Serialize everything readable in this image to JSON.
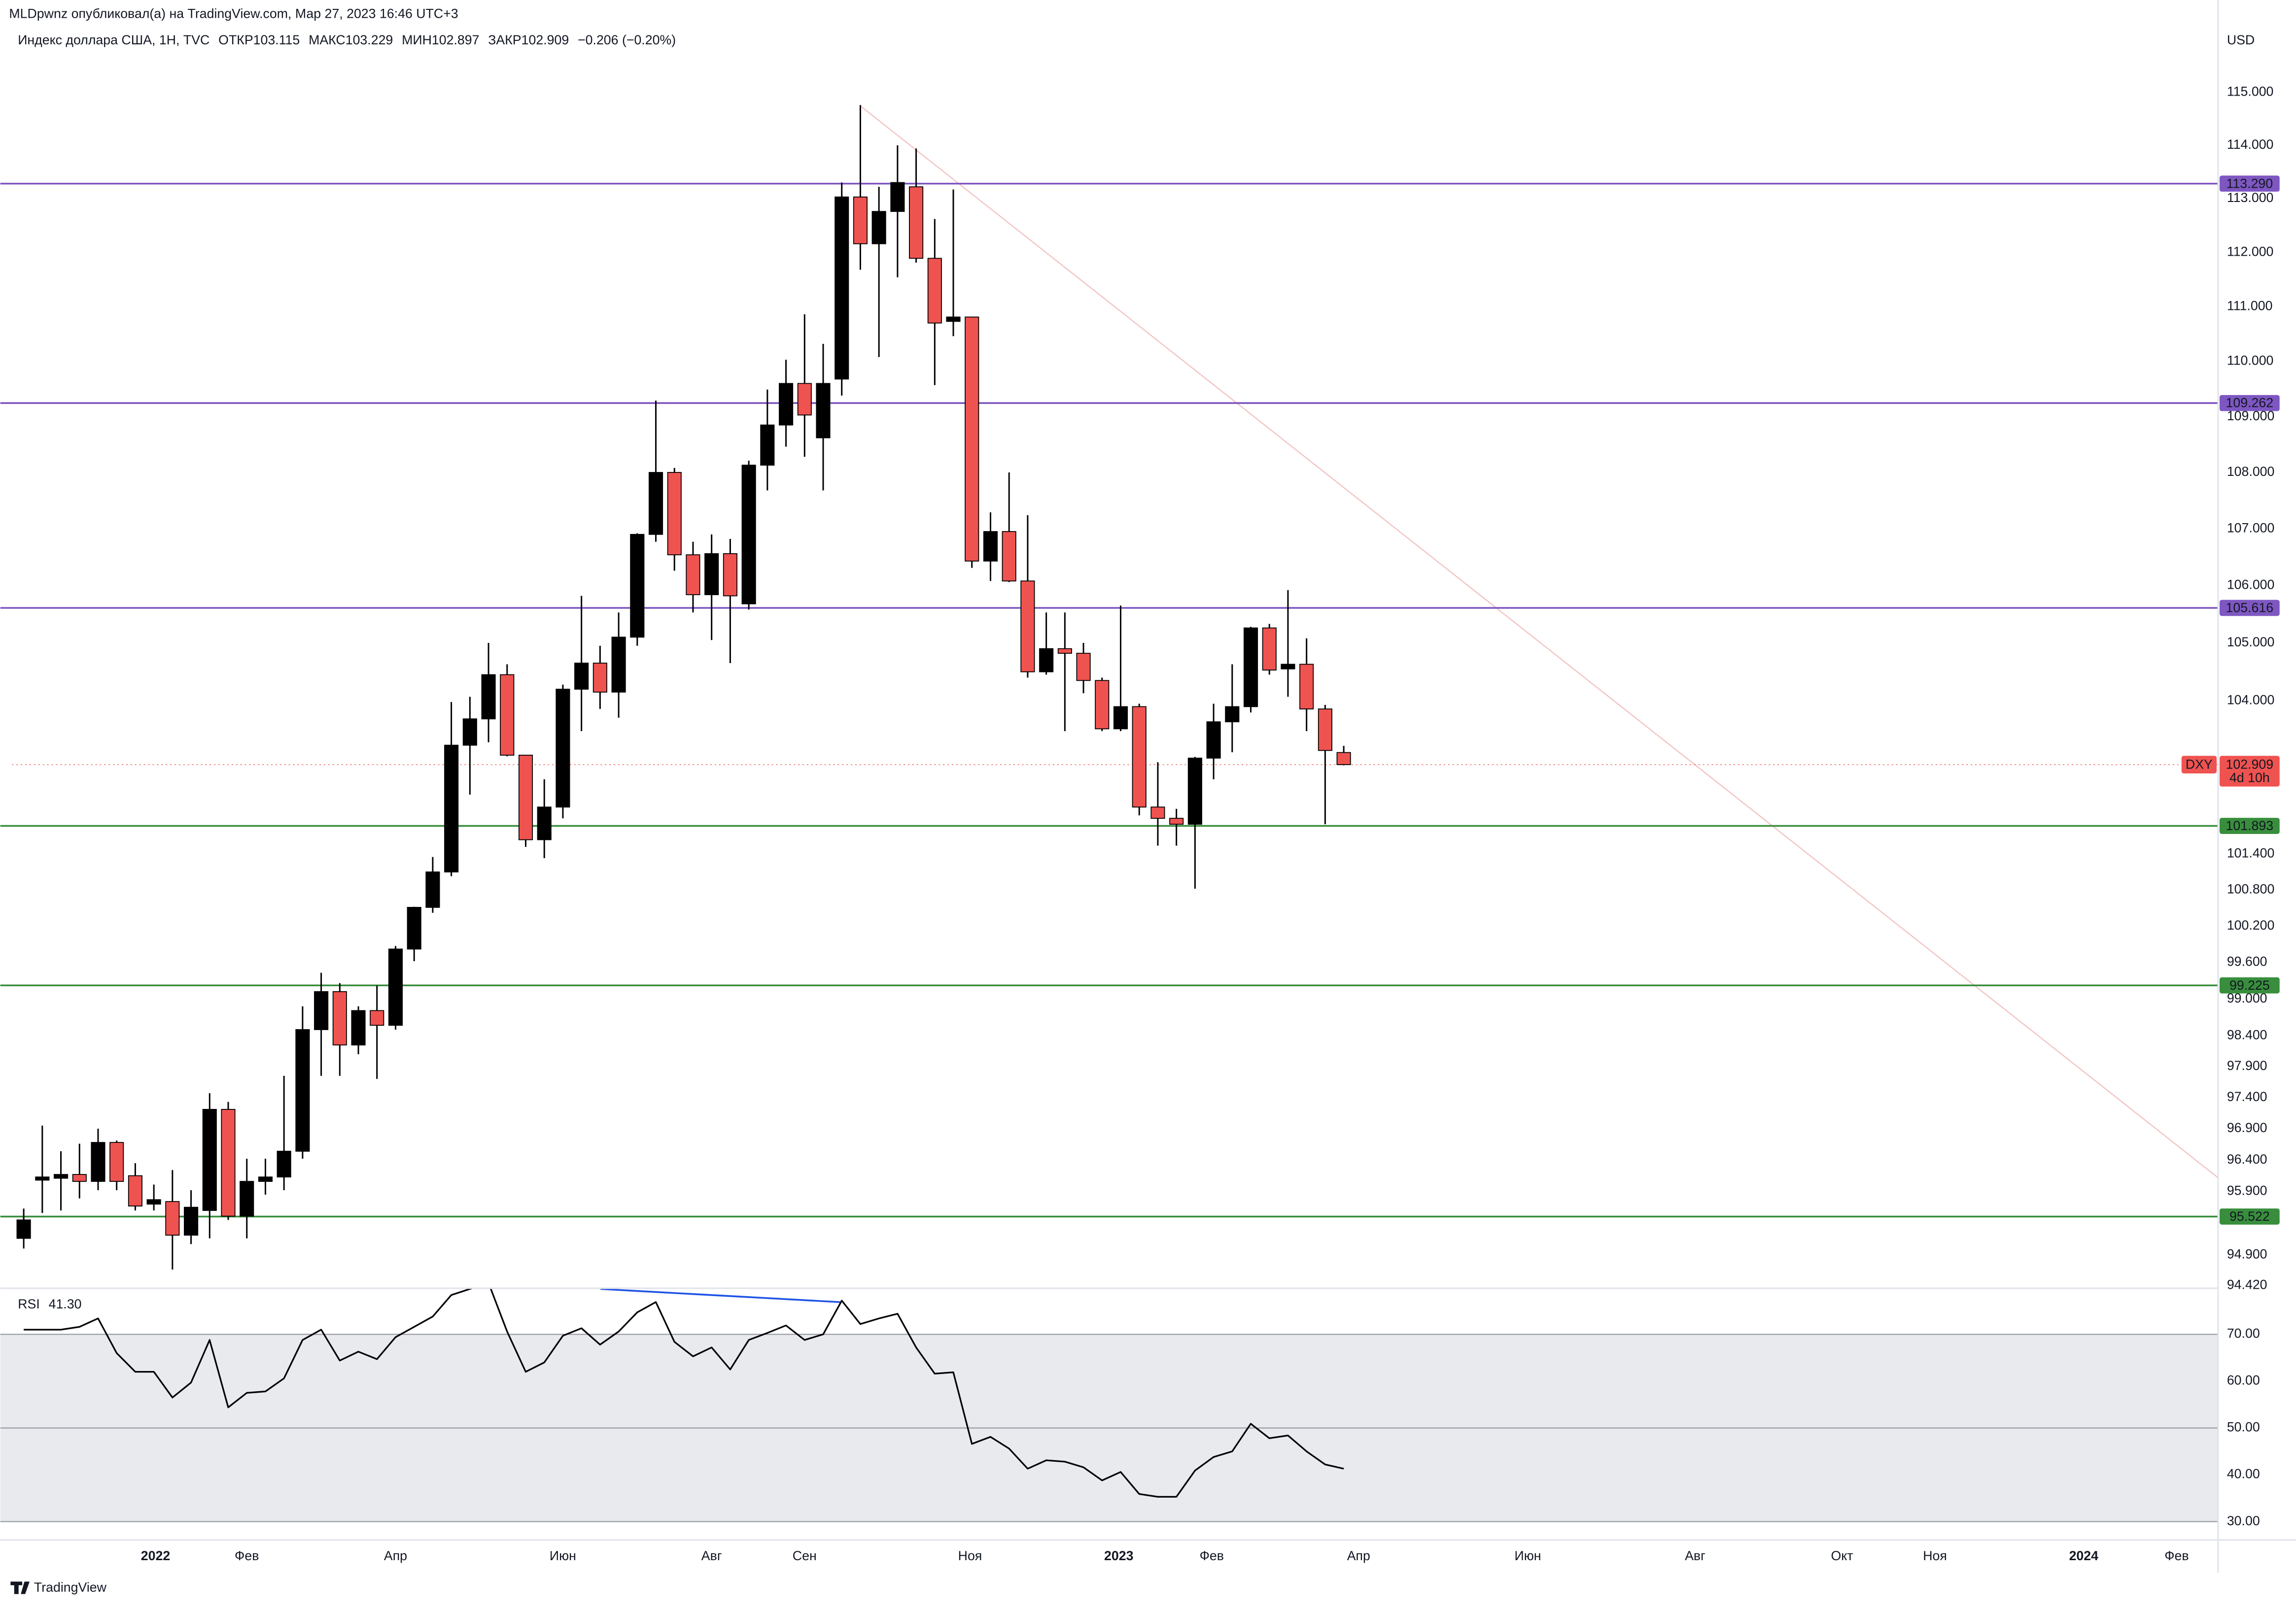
{
  "header": {
    "publisher": "MLDpwnz опубликовал(а) на TradingView.com, Мар 27, 2023 16:46 UTC+3",
    "legend": [
      "Индекс доллара США, 1Н, TVC",
      "ОТКР103.115",
      "МАКС103.229",
      "МИН102.897",
      "ЗАКР102.909",
      "−0.206 (−0.20%)"
    ],
    "currency": "USD"
  },
  "chart_data": [
    {
      "type": "candlestick",
      "log": true,
      "grid": false,
      "up_color": "#000000",
      "down_color": "#ef5350",
      "x": [
        0,
        1,
        2,
        3,
        4,
        5,
        6,
        7,
        8,
        9,
        10,
        11,
        12,
        13,
        14,
        15,
        16,
        17,
        18,
        19,
        20,
        21,
        22,
        23,
        24,
        25,
        26,
        27,
        28,
        29,
        30,
        31,
        32,
        33,
        34,
        35,
        36,
        37,
        38,
        39,
        40,
        41,
        42,
        43,
        44,
        45,
        46,
        47,
        48,
        49,
        50,
        51,
        52,
        53,
        54,
        55,
        56,
        57,
        58,
        59,
        60,
        61,
        62,
        63,
        64,
        65,
        66,
        67,
        68,
        69,
        70,
        71
      ],
      "open": [
        95.16,
        96.08,
        96.11,
        96.17,
        96.06,
        96.68,
        96.15,
        95.7,
        95.74,
        95.21,
        95.6,
        97.21,
        95.51,
        96.06,
        96.13,
        96.54,
        98.5,
        99.12,
        98.25,
        98.81,
        98.57,
        99.82,
        100.51,
        101.1,
        103.24,
        103.69,
        104.45,
        103.07,
        101.64,
        102.19,
        104.2,
        104.65,
        104.15,
        105.1,
        106.9,
        108.0,
        106.54,
        105.84,
        106.56,
        105.68,
        108.13,
        108.85,
        109.6,
        108.62,
        109.68,
        113.03,
        112.16,
        112.76,
        113.22,
        111.89,
        110.73,
        110.81,
        106.43,
        106.95,
        106.08,
        104.5,
        104.9,
        104.82,
        104.35,
        103.52,
        103.9,
        102.19,
        102.0,
        101.9,
        103.02,
        103.64,
        103.9,
        105.26,
        104.55,
        104.63,
        103.86,
        103.115
      ],
      "high": [
        95.63,
        96.95,
        96.54,
        96.66,
        96.9,
        96.71,
        96.35,
        96.01,
        96.24,
        95.92,
        97.47,
        97.33,
        96.42,
        96.42,
        97.75,
        98.88,
        99.43,
        99.26,
        98.88,
        99.22,
        99.87,
        100.52,
        101.35,
        103.98,
        104.07,
        105.0,
        104.63,
        103.07,
        102.66,
        104.28,
        105.82,
        104.95,
        105.53,
        106.92,
        109.29,
        108.08,
        106.77,
        106.9,
        106.82,
        108.21,
        109.49,
        110.03,
        110.86,
        110.32,
        113.3,
        114.76,
        113.22,
        114.0,
        113.94,
        112.62,
        113.17,
        110.81,
        107.29,
        108.0,
        107.24,
        105.53,
        105.53,
        105.0,
        104.4,
        105.65,
        103.95,
        102.95,
        102.16,
        103.04,
        103.95,
        104.63,
        105.28,
        105.33,
        105.92,
        105.08,
        103.93,
        103.229
      ],
      "low": [
        95.0,
        95.56,
        95.6,
        95.79,
        95.92,
        95.92,
        95.6,
        95.6,
        94.67,
        95.07,
        95.16,
        95.45,
        95.16,
        95.85,
        95.92,
        96.42,
        97.75,
        97.75,
        98.1,
        97.7,
        98.5,
        99.62,
        100.42,
        101.03,
        102.4,
        103.29,
        103.05,
        101.52,
        101.33,
        102.0,
        103.48,
        103.86,
        103.71,
        104.95,
        106.77,
        106.26,
        105.53,
        105.05,
        104.65,
        105.58,
        107.68,
        108.46,
        108.28,
        107.68,
        109.38,
        111.68,
        110.08,
        111.54,
        111.81,
        109.57,
        110.46,
        106.31,
        106.08,
        106.06,
        104.4,
        104.45,
        103.48,
        104.13,
        103.48,
        103.48,
        102.05,
        101.54,
        101.54,
        100.82,
        102.66,
        103.12,
        103.8,
        104.45,
        104.07,
        103.48,
        101.9,
        102.897
      ],
      "close": [
        95.45,
        96.13,
        96.17,
        96.06,
        96.68,
        96.06,
        95.67,
        95.77,
        95.21,
        95.65,
        97.21,
        95.51,
        96.06,
        96.13,
        96.54,
        98.5,
        99.12,
        98.25,
        98.81,
        98.57,
        99.82,
        100.51,
        101.1,
        103.24,
        103.69,
        104.45,
        103.07,
        101.64,
        102.19,
        104.2,
        104.65,
        104.15,
        105.1,
        106.9,
        108.0,
        106.54,
        105.84,
        106.56,
        105.82,
        108.13,
        108.85,
        109.6,
        109.03,
        109.6,
        113.03,
        112.16,
        112.76,
        113.3,
        111.89,
        110.7,
        110.81,
        106.43,
        106.95,
        106.08,
        104.5,
        104.9,
        104.82,
        104.35,
        103.52,
        103.9,
        102.19,
        102.0,
        101.9,
        103.02,
        103.64,
        103.9,
        105.26,
        104.53,
        104.63,
        103.86,
        103.15,
        102.909
      ],
      "xlim": [
        -0.63,
        118.03
      ],
      "xticks": [
        {
          "value": 7.09,
          "label": "2022"
        },
        {
          "value": 12.0,
          "label": "Фев"
        },
        {
          "value": 20.0,
          "label": "Апр"
        },
        {
          "value": 29.0,
          "label": "Июн"
        },
        {
          "value": 37.0,
          "label": "Авг"
        },
        {
          "value": 42.0,
          "label": "Сен"
        },
        {
          "value": 50.9,
          "label": "Ноя"
        },
        {
          "value": 58.9,
          "label": "2023"
        },
        {
          "value": 63.9,
          "label": "Фев"
        },
        {
          "value": 71.8,
          "label": "Апр"
        },
        {
          "value": 80.9,
          "label": "Июн"
        },
        {
          "value": 89.9,
          "label": "Авг"
        },
        {
          "value": 97.8,
          "label": "Окт"
        },
        {
          "value": 102.8,
          "label": "Ноя"
        },
        {
          "value": 110.8,
          "label": "2024"
        },
        {
          "value": 115.8,
          "label": "Фев"
        }
      ],
      "ylim": [
        94.39,
        116.77
      ],
      "yticks": [
        {
          "value": 115,
          "label": "115.000"
        },
        {
          "value": 114,
          "label": "114.000"
        },
        {
          "value": 113,
          "label": "113.000"
        },
        {
          "value": 112,
          "label": "112.000"
        },
        {
          "value": 111,
          "label": "111.000"
        },
        {
          "value": 110,
          "label": "110.000"
        },
        {
          "value": 109,
          "label": "109.000"
        },
        {
          "value": 108,
          "label": "108.000"
        },
        {
          "value": 107,
          "label": "107.000"
        },
        {
          "value": 106,
          "label": "106.000"
        },
        {
          "value": 105,
          "label": "105.000"
        },
        {
          "value": 104,
          "label": "104.000"
        },
        {
          "value": 101.4,
          "label": "101.400"
        },
        {
          "value": 100.8,
          "label": "100.800"
        },
        {
          "value": 100.2,
          "label": "100.200"
        },
        {
          "value": 99.6,
          "label": "99.600"
        },
        {
          "value": 99,
          "label": "99.000"
        },
        {
          "value": 98.4,
          "label": "98.400"
        },
        {
          "value": 97.9,
          "label": "97.900"
        },
        {
          "value": 97.4,
          "label": "97.400"
        },
        {
          "value": 96.9,
          "label": "96.900"
        },
        {
          "value": 96.4,
          "label": "96.400"
        },
        {
          "value": 95.9,
          "label": "95.900"
        },
        {
          "value": 94.9,
          "label": "94.900"
        },
        {
          "value": 94.42,
          "label": "94.420"
        }
      ],
      "levels": [
        {
          "value": 113.29,
          "label": "113.290",
          "color": "#7e57c2"
        },
        {
          "value": 109.262,
          "label": "109.262",
          "color": "#7e57c2"
        },
        {
          "value": 105.616,
          "label": "105.616",
          "color": "#7e57c2"
        },
        {
          "value": 101.893,
          "label": "101.893",
          "color": "#388e3c"
        },
        {
          "value": 99.225,
          "label": "99.225",
          "color": "#388e3c"
        },
        {
          "value": 95.522,
          "label": "95.522",
          "color": "#388e3c"
        }
      ],
      "last_price": {
        "value": 102.909,
        "label": "102.909",
        "color": "#ef5350"
      },
      "symbol": "DXY",
      "countdown": "4d 10h"
    },
    {
      "type": "line",
      "title": "RSI",
      "current_label": "41.30",
      "color": "#000000",
      "x": [
        0,
        1,
        2,
        3,
        4,
        5,
        6,
        7,
        8,
        9,
        10,
        11,
        12,
        13,
        14,
        15,
        16,
        17,
        18,
        19,
        20,
        21,
        22,
        23,
        24,
        25,
        26,
        27,
        28,
        29,
        30,
        31,
        32,
        33,
        34,
        35,
        36,
        37,
        38,
        39,
        40,
        41,
        42,
        43,
        44,
        45,
        46,
        47,
        48,
        49,
        50,
        51,
        52,
        53,
        54,
        55,
        56,
        57,
        58,
        59,
        60,
        61,
        62,
        63,
        64,
        65,
        66,
        67,
        68,
        69,
        70,
        71
      ],
      "values": [
        71,
        71,
        71,
        71.6,
        73.4,
        66,
        62,
        62,
        56.5,
        59.7,
        68.8,
        54.4,
        57.5,
        57.8,
        60.6,
        68.8,
        71,
        64.4,
        66.3,
        64.7,
        69.4,
        71.6,
        73.8,
        78.4,
        79.7,
        81,
        70.6,
        62,
        64,
        69.7,
        71.3,
        67.8,
        70.6,
        74.7,
        76.9,
        68.4,
        65.3,
        67.2,
        62.5,
        68.8,
        70.3,
        71.9,
        68.8,
        70,
        77.2,
        72.2,
        73.4,
        74.4,
        67.2,
        61.6,
        61.9,
        46.6,
        48.1,
        45.6,
        41.3,
        43.1,
        42.8,
        41.6,
        38.8,
        40.6,
        35.9,
        35.3,
        35.3,
        40.9,
        43.8,
        45,
        50.9,
        47.8,
        48.4,
        45,
        42.2,
        41.3
      ],
      "ylim": [
        26.25,
        79.69
      ],
      "yticks": [
        {
          "value": 70,
          "label": "70.00"
        },
        {
          "value": 60,
          "label": "60.00"
        },
        {
          "value": 50,
          "label": "50.00"
        },
        {
          "value": 40,
          "label": "40.00"
        },
        {
          "value": 30,
          "label": "30.00"
        }
      ],
      "band": [
        30,
        70
      ],
      "band_color": "#e9eaee",
      "lines": [
        70,
        50,
        30
      ]
    }
  ],
  "footer": {
    "brand": "TradingView"
  }
}
